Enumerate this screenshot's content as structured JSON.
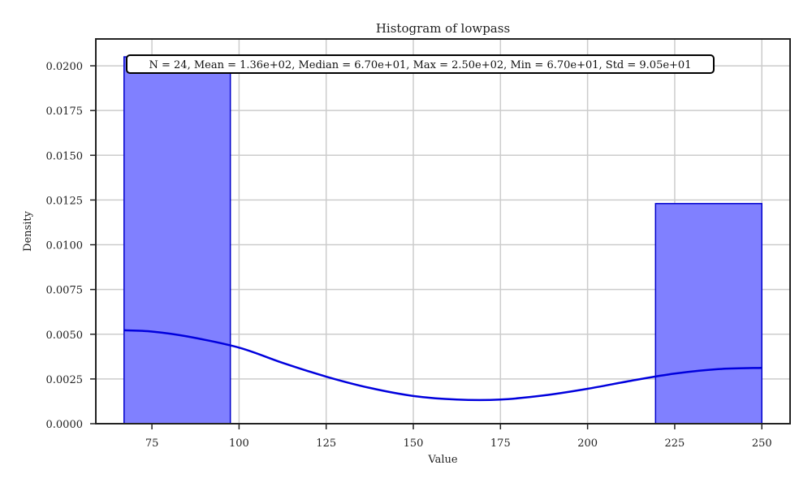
{
  "chart_data": {
    "type": "bar",
    "title": "Histogram of lowpass",
    "xlabel": "Value",
    "ylabel": "Density",
    "xlim": [
      58.9,
      258.1
    ],
    "ylim": [
      0,
      0.0215
    ],
    "grid": true,
    "x_ticks": [
      75,
      100,
      125,
      150,
      175,
      200,
      225,
      250
    ],
    "y_ticks": [
      0,
      0.0025,
      0.005,
      0.0075,
      0.01,
      0.0125,
      0.015,
      0.0175,
      0.02
    ],
    "x_tick_labels": [
      "75",
      "100",
      "125",
      "150",
      "175",
      "200",
      "225",
      "250"
    ],
    "y_tick_labels": [
      "0.0000",
      "0.0025",
      "0.0050",
      "0.0075",
      "0.0100",
      "0.0125",
      "0.0150",
      "0.0175",
      "0.0200"
    ],
    "bins": [
      {
        "x0": 67.0,
        "x1": 97.5,
        "density": 0.0205
      },
      {
        "x0": 97.5,
        "x1": 128.0,
        "density": 0
      },
      {
        "x0": 128.0,
        "x1": 158.5,
        "density": 0
      },
      {
        "x0": 158.5,
        "x1": 189.0,
        "density": 0
      },
      {
        "x0": 189.0,
        "x1": 219.5,
        "density": 0
      },
      {
        "x0": 219.5,
        "x1": 250.0,
        "density": 0.0123
      }
    ],
    "kde": {
      "x": [
        67,
        75,
        85,
        100,
        112.5,
        125,
        137.5,
        150,
        162.5,
        175,
        187.5,
        200,
        212.5,
        225,
        237.5,
        250
      ],
      "y": [
        0.00522,
        0.00515,
        0.00488,
        0.00425,
        0.0034,
        0.00263,
        0.002,
        0.00155,
        0.00135,
        0.00135,
        0.00158,
        0.00195,
        0.0024,
        0.0028,
        0.00305,
        0.00312
      ]
    },
    "annotation": "N = 24, Mean = 1.36e+02, Median = 6.70e+01, Max = 2.50e+02, Min = 6.70e+01, Std = 9.05e+01",
    "colors": {
      "bar_fill": "#8080ff",
      "bar_edge": "#0000cc",
      "kde_line": "#0000dd",
      "grid": "#cccccc",
      "axis": "#222222"
    }
  }
}
